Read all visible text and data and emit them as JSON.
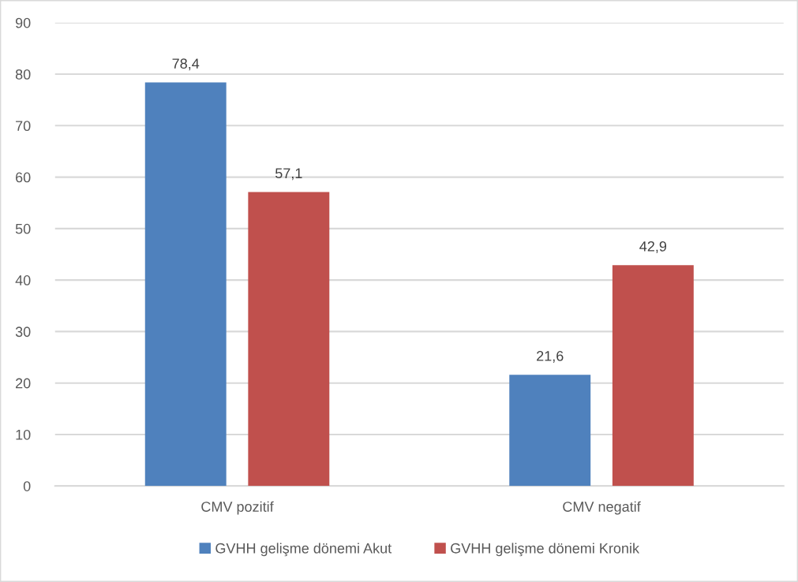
{
  "chart_data": {
    "type": "bar",
    "categories": [
      "CMV pozitif",
      "CMV negatif"
    ],
    "series": [
      {
        "name": "GVHH gelişme dönemi Akut",
        "color": "#4f81bd",
        "values": [
          78.4,
          21.6
        ],
        "value_labels": [
          "78,4",
          "21,6"
        ]
      },
      {
        "name": "GVHH gelişme dönemi Kronik",
        "color": "#c0504d",
        "values": [
          57.1,
          42.9
        ],
        "value_labels": [
          "57,1",
          "42,9"
        ]
      }
    ],
    "ylim": [
      0,
      90
    ],
    "yticks": [
      0,
      10,
      20,
      30,
      40,
      50,
      60,
      70,
      80,
      90
    ],
    "grid": "y",
    "legend": "bottom"
  }
}
